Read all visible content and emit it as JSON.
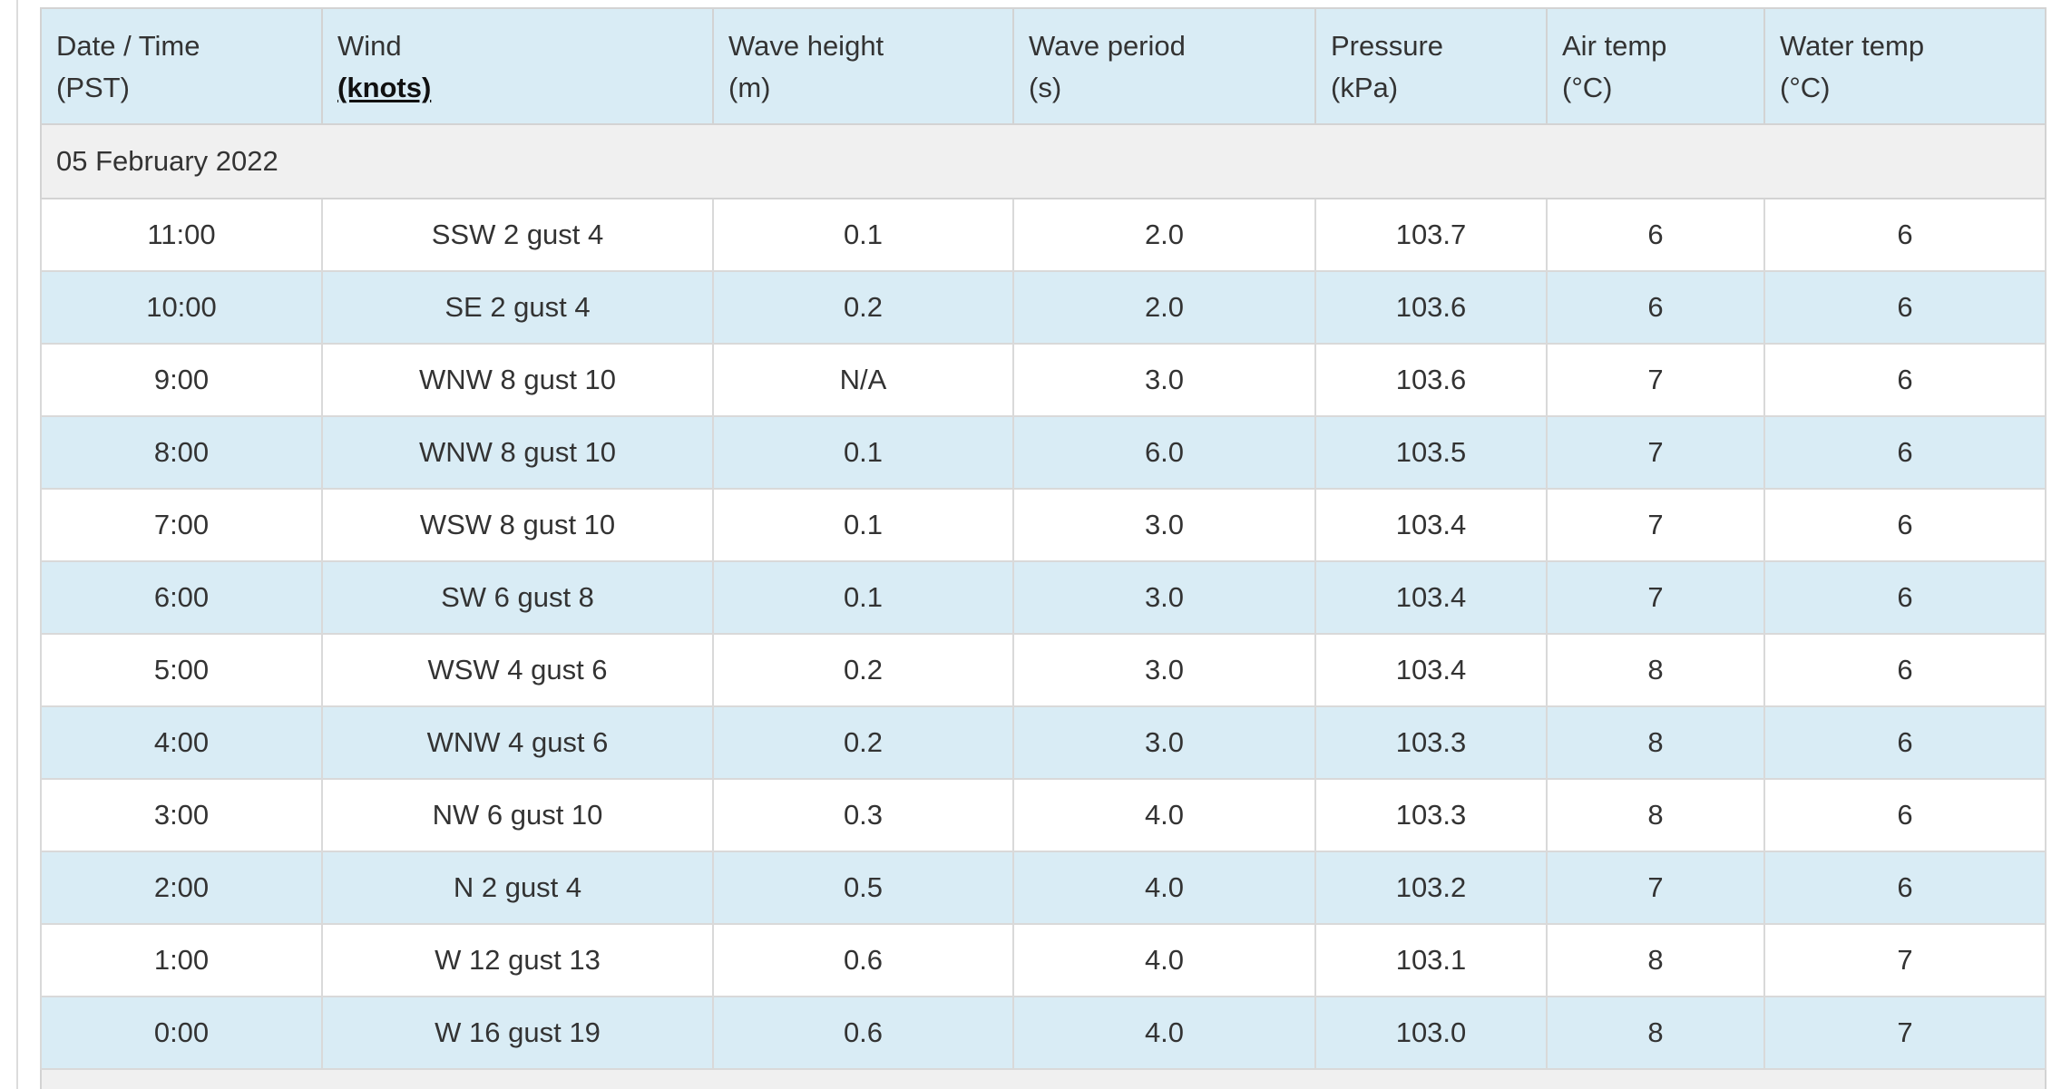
{
  "headers": [
    {
      "label": "Date / Time",
      "units": "(PST)",
      "units_strong": false
    },
    {
      "label": "Wind",
      "units": "(knots)",
      "units_strong": true
    },
    {
      "label": "Wave height",
      "units": "(m)",
      "units_strong": false
    },
    {
      "label": "Wave period",
      "units": "(s)",
      "units_strong": false
    },
    {
      "label": "Pressure",
      "units": "(kPa)",
      "units_strong": false
    },
    {
      "label": "Air temp",
      "units": "(°C)",
      "units_strong": false
    },
    {
      "label": "Water temp",
      "units": "(°C)",
      "units_strong": false
    }
  ],
  "date_group": "05 February 2022",
  "rows": [
    {
      "time": "11:00",
      "wind": "SSW 2 gust 4",
      "wave_height": "0.1",
      "wave_period": "2.0",
      "pressure": "103.7",
      "air_temp": "6",
      "water_temp": "6"
    },
    {
      "time": "10:00",
      "wind": "SE 2 gust 4",
      "wave_height": "0.2",
      "wave_period": "2.0",
      "pressure": "103.6",
      "air_temp": "6",
      "water_temp": "6"
    },
    {
      "time": "9:00",
      "wind": "WNW 8 gust 10",
      "wave_height": "N/A",
      "wave_period": "3.0",
      "pressure": "103.6",
      "air_temp": "7",
      "water_temp": "6"
    },
    {
      "time": "8:00",
      "wind": "WNW 8 gust 10",
      "wave_height": "0.1",
      "wave_period": "6.0",
      "pressure": "103.5",
      "air_temp": "7",
      "water_temp": "6"
    },
    {
      "time": "7:00",
      "wind": "WSW 8 gust 10",
      "wave_height": "0.1",
      "wave_period": "3.0",
      "pressure": "103.4",
      "air_temp": "7",
      "water_temp": "6"
    },
    {
      "time": "6:00",
      "wind": "SW 6 gust 8",
      "wave_height": "0.1",
      "wave_period": "3.0",
      "pressure": "103.4",
      "air_temp": "7",
      "water_temp": "6"
    },
    {
      "time": "5:00",
      "wind": "WSW 4 gust 6",
      "wave_height": "0.2",
      "wave_period": "3.0",
      "pressure": "103.4",
      "air_temp": "8",
      "water_temp": "6"
    },
    {
      "time": "4:00",
      "wind": "WNW 4 gust 6",
      "wave_height": "0.2",
      "wave_period": "3.0",
      "pressure": "103.3",
      "air_temp": "8",
      "water_temp": "6"
    },
    {
      "time": "3:00",
      "wind": "NW 6 gust 10",
      "wave_height": "0.3",
      "wave_period": "4.0",
      "pressure": "103.3",
      "air_temp": "8",
      "water_temp": "6"
    },
    {
      "time": "2:00",
      "wind": "N 2 gust 4",
      "wave_height": "0.5",
      "wave_period": "4.0",
      "pressure": "103.2",
      "air_temp": "7",
      "water_temp": "6"
    },
    {
      "time": "1:00",
      "wind": "W 12 gust 13",
      "wave_height": "0.6",
      "wave_period": "4.0",
      "pressure": "103.1",
      "air_temp": "8",
      "water_temp": "7"
    },
    {
      "time": "0:00",
      "wind": "W 16 gust 19",
      "wave_height": "0.6",
      "wave_period": "4.0",
      "pressure": "103.0",
      "air_temp": "8",
      "water_temp": "7"
    }
  ],
  "colors": {
    "header_bg": "#d9ecf5",
    "stripe_bg": "#d9ecf5",
    "date_row_bg": "#f0f0f0",
    "border": "#d3d3d3",
    "text": "#333333"
  }
}
